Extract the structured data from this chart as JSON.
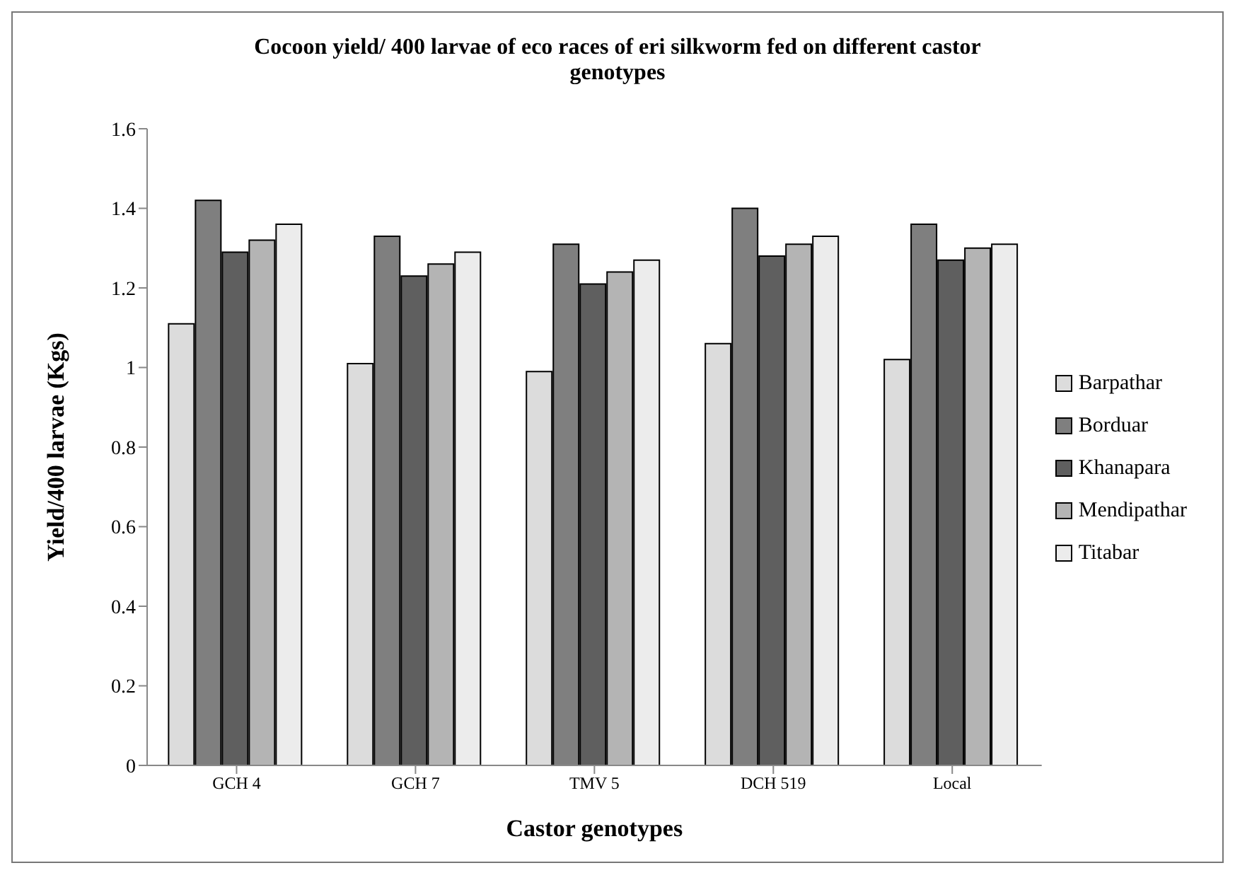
{
  "chart_data": {
    "type": "bar",
    "title": "Cocoon  yield/ 400 larvae of eco races of eri silkworm fed on different castor genotypes",
    "xlabel": "Castor genotypes",
    "ylabel": "Yield/400 larvae (Kgs)",
    "categories": [
      "GCH 4",
      "GCH 7",
      "TMV 5",
      "DCH 519",
      "Local"
    ],
    "series": [
      {
        "name": "Barpathar",
        "color": "#dcdcdc",
        "values": [
          1.11,
          1.01,
          0.99,
          1.06,
          1.02
        ]
      },
      {
        "name": "Borduar",
        "color": "#7f7f7f",
        "values": [
          1.42,
          1.33,
          1.31,
          1.4,
          1.36
        ]
      },
      {
        "name": "Khanapara",
        "color": "#5f5f5f",
        "values": [
          1.29,
          1.23,
          1.21,
          1.28,
          1.27
        ]
      },
      {
        "name": "Mendipathar",
        "color": "#b4b4b4",
        "values": [
          1.32,
          1.26,
          1.24,
          1.31,
          1.3
        ]
      },
      {
        "name": "Titabar",
        "color": "#ececec",
        "values": [
          1.36,
          1.29,
          1.27,
          1.33,
          1.31
        ]
      }
    ],
    "ylim": [
      0,
      1.6
    ],
    "yticks": [
      0,
      0.2,
      0.4,
      0.6,
      0.8,
      1,
      1.2,
      1.4,
      1.6
    ],
    "grid": false,
    "legend": "right"
  }
}
